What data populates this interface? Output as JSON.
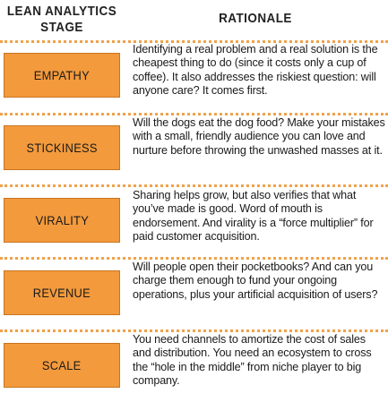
{
  "header": {
    "stage_title": "LEAN ANALYTICS STAGE",
    "rationale_title": "RATIONALE"
  },
  "colors": {
    "box_fill": "#f39a3d",
    "dotted_separator": "#f0a24a"
  },
  "rows": [
    {
      "stage": "EMPATHY",
      "rationale": "Identifying a real problem and a real solution is the cheapest thing to do (since it costs only a cup of coffee). It also addresses the riskiest question: will anyone care? It comes first."
    },
    {
      "stage": "STICKINESS",
      "rationale": "Will the dogs eat the dog food? Make your mistakes with a small, friendly audience you can love and nurture before throwing the unwashed masses at it."
    },
    {
      "stage": "VIRALITY",
      "rationale": "Sharing helps grow, but also verifies that what you’ve made is good. Word of mouth is endorsement. And virality is a “force multiplier” for paid customer acquisition."
    },
    {
      "stage": "REVENUE",
      "rationale": "Will people open their pocketbooks? And can you charge them enough to fund your ongoing operations, plus your artificial acquisition of users?"
    },
    {
      "stage": "SCALE",
      "rationale": "You need channels to amortize the cost of sales and distribution. You need an ecosystem to cross the “hole in the middle” from niche player to big company."
    }
  ]
}
